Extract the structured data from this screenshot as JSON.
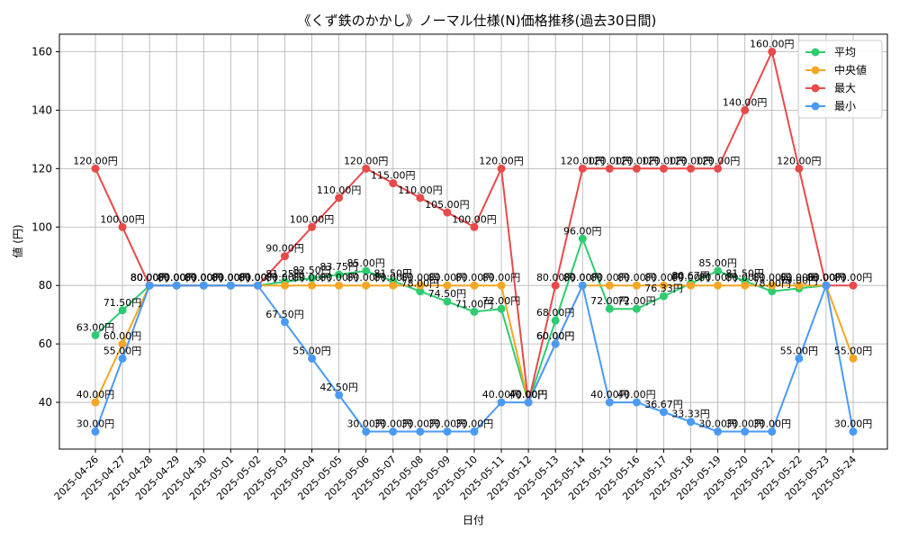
{
  "chart_data": {
    "type": "line",
    "title": "《くず鉄のかかし》ノーマル仕様(N)価格推移(過去30日間)",
    "xlabel": "日付",
    "ylabel": "値 (円)",
    "ylim": [
      24,
      166
    ],
    "yticks": [
      40,
      60,
      80,
      100,
      120,
      140,
      160
    ],
    "grid": true,
    "legend_position": "top-right",
    "label_suffix": "円",
    "categories": [
      "2025-04-26",
      "2025-04-27",
      "2025-04-28",
      "2025-04-29",
      "2025-04-30",
      "2025-05-01",
      "2025-05-02",
      "2025-05-03",
      "2025-05-04",
      "2025-05-05",
      "2025-05-06",
      "2025-05-07",
      "2025-05-08",
      "2025-05-09",
      "2025-05-10",
      "2025-05-11",
      "2025-05-12",
      "2025-05-13",
      "2025-05-14",
      "2025-05-15",
      "2025-05-16",
      "2025-05-17",
      "2025-05-18",
      "2025-05-19",
      "2025-05-20",
      "2025-05-21",
      "2025-05-22",
      "2025-05-23",
      "2025-05-24"
    ],
    "series": [
      {
        "name": "平均",
        "color": "#2ecc71",
        "values": [
          63,
          71.5,
          80,
          80,
          80,
          80,
          80,
          81.25,
          82.5,
          83.75,
          85,
          81.5,
          78,
          74.5,
          71,
          72,
          40,
          68,
          96,
          72,
          72,
          76.33,
          80.67,
          85,
          81.5,
          78,
          79,
          80,
          null
        ]
      },
      {
        "name": "中央値",
        "color": "#f5a623",
        "values": [
          40,
          60,
          80,
          80,
          80,
          80,
          80,
          80,
          80,
          80,
          80,
          80,
          80,
          80,
          80,
          80,
          40,
          60,
          80,
          80,
          80,
          80,
          80,
          80,
          80,
          80,
          80,
          80,
          55
        ]
      },
      {
        "name": "最大",
        "color": "#e84a4a",
        "values": [
          120,
          100,
          80,
          80,
          80,
          80,
          80,
          90,
          100,
          110,
          120,
          115,
          110,
          105,
          100,
          120,
          40,
          80,
          120,
          120,
          120,
          120,
          120,
          120,
          140,
          160,
          120,
          80,
          80
        ]
      },
      {
        "name": "最小",
        "color": "#4a9af5",
        "values": [
          30,
          55,
          80,
          80,
          80,
          80,
          80,
          67.5,
          55,
          42.5,
          30,
          30,
          30,
          30,
          30,
          40,
          40,
          60,
          80,
          40,
          40,
          36.67,
          33.33,
          30,
          30,
          30,
          55,
          80,
          30
        ]
      }
    ]
  }
}
